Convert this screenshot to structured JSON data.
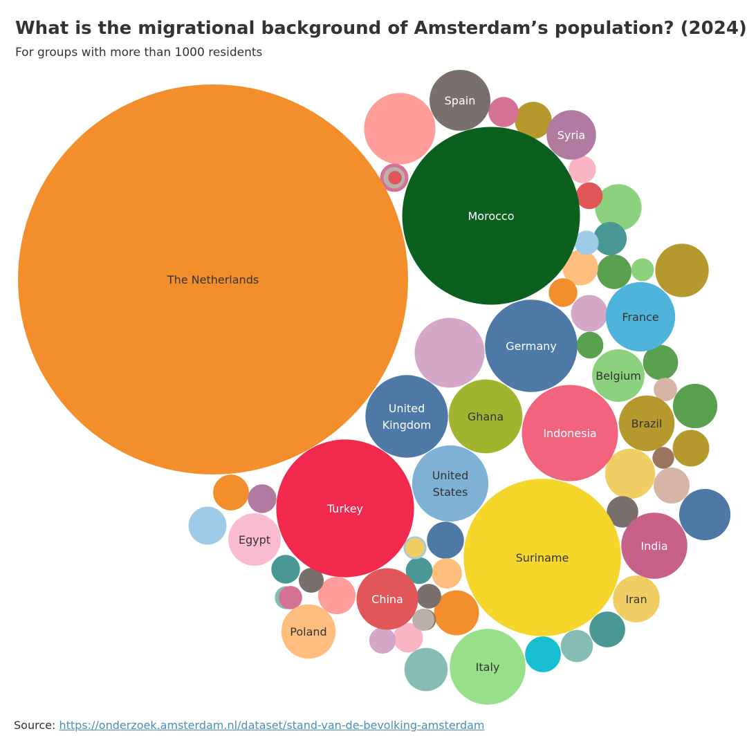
{
  "header": {
    "title": "What is the migrational background of Amsterdam’s population? (2024)",
    "subtitle": "For groups with more than 1000 residents"
  },
  "footer": {
    "source_label": "Source: ",
    "source_link": "https://onderzoek.amsterdam.nl/dataset/stand-van-de-bevolking-amsterdam"
  },
  "chart_data": {
    "type": "bubble",
    "value_encoding": "circle area",
    "title": "What is the migrational background of Amsterdam’s population? (2024)",
    "subtitle": "For groups with more than 1000 residents",
    "labeled_bubbles": [
      {
        "name": "The Netherlands",
        "relative_size": 1.0,
        "color": "#f28e2b",
        "text_color": "#333333"
      },
      {
        "name": "Morocco",
        "relative_size": 0.2075,
        "color": "#0b5f1f",
        "text_color": "#ffffff"
      },
      {
        "name": "Suriname",
        "relative_size": 0.1626,
        "color": "#f7d62c",
        "text_color": "#333333"
      },
      {
        "name": "Turkey",
        "relative_size": 0.1247,
        "color": "#f2294f",
        "text_color": "#ffffff"
      },
      {
        "name": "Indonesia",
        "relative_size": 0.0608,
        "color": "#f2647e",
        "text_color": "#ffffff"
      },
      {
        "name": "Germany",
        "relative_size": 0.0561,
        "color": "#4e79a7",
        "text_color": "#ffffff"
      },
      {
        "name": "United Kingdom",
        "relative_size": 0.0448,
        "color": "#4e79a7",
        "text_color": "#ffffff"
      },
      {
        "name": "United States",
        "relative_size": 0.0382,
        "color": "#7fb0d6",
        "text_color": "#333333"
      },
      {
        "name": "Ghana",
        "relative_size": 0.0358,
        "color": "#a0b42d",
        "text_color": "#333333"
      },
      {
        "name": "Italy",
        "relative_size": 0.0378,
        "color": "#98df8a",
        "text_color": "#333333"
      },
      {
        "name": "France",
        "relative_size": 0.0316,
        "color": "#4fb4db",
        "text_color": "#333333"
      },
      {
        "name": "India",
        "relative_size": 0.0287,
        "color": "#c76187",
        "text_color": "#ffffff"
      },
      {
        "name": "China",
        "relative_size": 0.0249,
        "color": "#e15759",
        "text_color": "#ffffff"
      },
      {
        "name": "Poland",
        "relative_size": 0.0194,
        "color": "#ffbe7d",
        "text_color": "#333333"
      },
      {
        "name": "Egypt",
        "relative_size": 0.0181,
        "color": "#fbbcd3",
        "text_color": "#333333"
      },
      {
        "name": "Belgium",
        "relative_size": 0.0181,
        "color": "#8cd17d",
        "text_color": "#333333"
      },
      {
        "name": "Spain",
        "relative_size": 0.0244,
        "color": "#79706e",
        "text_color": "#ffffff"
      },
      {
        "name": "Brazil",
        "relative_size": 0.0204,
        "color": "#b5992c",
        "text_color": "#333333"
      },
      {
        "name": "Syria",
        "relative_size": 0.0161,
        "color": "#b07aa1",
        "text_color": "#ffffff"
      },
      {
        "name": "Iran",
        "relative_size": 0.0144,
        "color": "#f1ce63",
        "text_color": "#333333"
      }
    ],
    "unlabeled_bubbles": [
      {
        "color": "#ff9d9a",
        "relative_size": 0.0335
      },
      {
        "color": "#d4a6c8",
        "relative_size": 0.0321
      },
      {
        "color": "#b5992c",
        "relative_size": 0.0188
      },
      {
        "color": "#4e79a7",
        "relative_size": 0.0173
      },
      {
        "color": "#f1ce63",
        "relative_size": 0.0165
      },
      {
        "color": "#59a14f",
        "relative_size": 0.013
      },
      {
        "color": "#8cd17d",
        "relative_size": 0.0143
      },
      {
        "color": "#a0cbe8",
        "relative_size": 0.0095
      },
      {
        "color": "#f28e2b",
        "relative_size": 0.0133
      },
      {
        "color": "#86bcb6",
        "relative_size": 0.0123
      },
      {
        "color": "#f28e2b",
        "relative_size": 0.0084
      },
      {
        "color": "#ff9d9a",
        "relative_size": 0.0092
      },
      {
        "color": "#17becf",
        "relative_size": 0.0084
      },
      {
        "color": "#d4a6c8",
        "relative_size": 0.0088
      },
      {
        "color": "#499894",
        "relative_size": 0.0084
      },
      {
        "color": "#59a14f",
        "relative_size": 0.0078
      },
      {
        "color": "#b5992c",
        "relative_size": 0.0088
      },
      {
        "color": "#d7b5a6",
        "relative_size": 0.0085
      },
      {
        "color": "#ffbe7d",
        "relative_size": 0.0083
      },
      {
        "color": "#b5992c",
        "relative_size": 0.009
      },
      {
        "color": "#4e79a7",
        "relative_size": 0.009
      },
      {
        "color": "#59a14f",
        "relative_size": 0.0081
      },
      {
        "color": "#ffbe7d",
        "relative_size": 0.006
      },
      {
        "color": "#86bcb6",
        "relative_size": 0.0068
      },
      {
        "color": "#499894",
        "relative_size": 0.0073
      },
      {
        "color": "#499894",
        "relative_size": 0.0054
      },
      {
        "color": "#d37295",
        "relative_size": 0.0053
      },
      {
        "color": "#79706e",
        "relative_size": 0.0065
      },
      {
        "color": "#fbb4c4",
        "relative_size": 0.0058
      },
      {
        "color": "#b07aa1",
        "relative_size": 0.0054
      },
      {
        "color": "#d37295",
        "relative_size": 0.006
      },
      {
        "color": "#499894",
        "relative_size": 0.0047
      },
      {
        "color": "#f28e2b",
        "relative_size": 0.0054
      },
      {
        "color": "#fbb4c4",
        "relative_size": 0.0049
      },
      {
        "color": "#e15759",
        "relative_size": 0.0047
      },
      {
        "color": "#59a14f",
        "relative_size": 0.0047
      },
      {
        "color": "#a0cbe8",
        "relative_size": 0.0035
      },
      {
        "color": "#d4a6c8",
        "relative_size": 0.0046
      },
      {
        "color": "#d7b5a6",
        "relative_size": 0.0036
      },
      {
        "color": "#8cd17d",
        "relative_size": 0.0034
      },
      {
        "color": "#79706e",
        "relative_size": 0.004
      },
      {
        "color": "#86bcb6",
        "relative_size": 0.0035
      },
      {
        "color": "#9c755f",
        "relative_size": 0.0031
      },
      {
        "color": "#9c755f",
        "relative_size": 0.003
      },
      {
        "color": "#79706e",
        "relative_size": 0.0041
      },
      {
        "color": "#a0cbe8",
        "relative_size": 0.0039
      },
      {
        "color": "#bab0ac",
        "relative_size": 0.003
      },
      {
        "color": "#bab0ac",
        "relative_size": 0.0032
      },
      {
        "color": "#f1ce63",
        "relative_size": 0.0025
      },
      {
        "color": "#d37295",
        "relative_size": 0.0036
      },
      {
        "color": "#e15759",
        "relative_size": 0.0012
      }
    ]
  }
}
